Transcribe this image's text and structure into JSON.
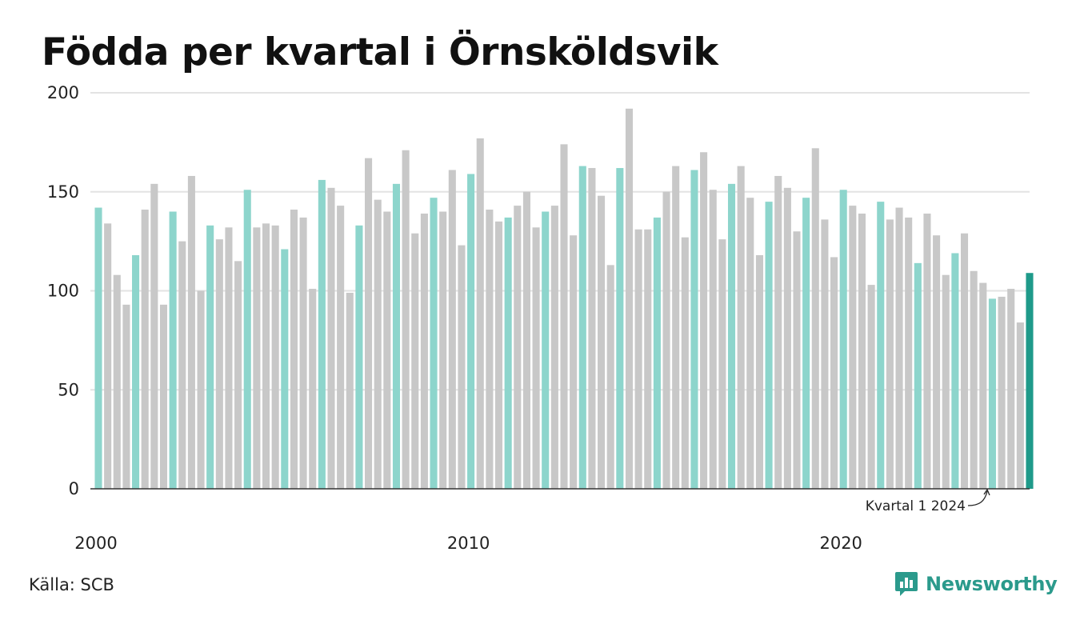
{
  "title": "Födda per kvartal i Örnsköldsvik",
  "source": "Källa: SCB",
  "brand": "Newsworthy",
  "annotation": "Kvartal 1 2024",
  "colors": {
    "q1": "#8dd5cc",
    "other": "#c8c8c8",
    "latest": "#1f9a8a",
    "grid": "#e3e3e3",
    "brand": "#2b9a8c"
  },
  "icons": {
    "brand_logo": "bar-chart-speech-bubble-icon",
    "annotation_arrow": "curved-arrow-icon"
  },
  "chart_data": {
    "type": "bar",
    "title": "Födda per kvartal i Örnsköldsvik",
    "xlabel": "",
    "ylabel": "",
    "ylim": [
      0,
      200
    ],
    "yticks": [
      0,
      50,
      100,
      150,
      200
    ],
    "xticks": [
      "2000",
      "2010",
      "2020"
    ],
    "grid": true,
    "start": "2000 Q1",
    "highlight": "Q1 bars in light teal, latest bar (Kvartal 1 2024) in dark teal",
    "values": [
      142,
      134,
      108,
      93,
      118,
      141,
      154,
      93,
      140,
      125,
      158,
      100,
      133,
      126,
      132,
      115,
      151,
      132,
      134,
      133,
      121,
      141,
      137,
      101,
      156,
      152,
      143,
      99,
      133,
      167,
      146,
      140,
      154,
      171,
      129,
      139,
      147,
      140,
      161,
      123,
      159,
      177,
      141,
      135,
      137,
      143,
      150,
      132,
      140,
      143,
      174,
      128,
      163,
      162,
      148,
      113,
      162,
      192,
      131,
      131,
      137,
      150,
      163,
      127,
      161,
      170,
      151,
      126,
      154,
      163,
      147,
      118,
      145,
      158,
      152,
      130,
      147,
      172,
      136,
      117,
      151,
      143,
      139,
      103,
      145,
      136,
      142,
      137,
      114,
      139,
      128,
      108,
      119,
      129,
      110,
      104,
      96,
      97,
      101,
      84,
      109
    ]
  }
}
